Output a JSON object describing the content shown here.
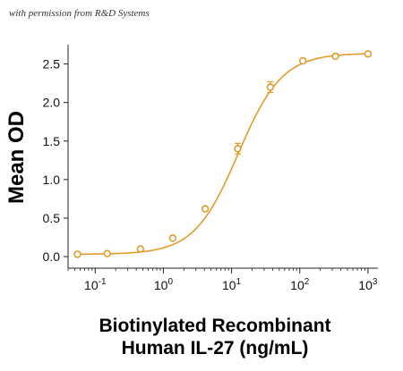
{
  "credit": "with permission from R&D Systems",
  "colors": {
    "series": "#e39b2b",
    "axis": "#222222"
  },
  "chart_data": {
    "type": "scatter",
    "title": "",
    "ylabel": "Mean OD",
    "xlabel_line1": "Biotinylated Recombinant",
    "xlabel_line2": "Human IL-27 (ng/mL)",
    "x_scale": "log",
    "xlim": [
      0.04,
      1400
    ],
    "ylim": [
      -0.15,
      2.75
    ],
    "x_ticks": [
      0.1,
      1,
      10,
      100,
      1000
    ],
    "x_tick_labels": [
      {
        "base": "10",
        "exp": "-1"
      },
      {
        "base": "10",
        "exp": "0"
      },
      {
        "base": "10",
        "exp": "1"
      },
      {
        "base": "10",
        "exp": "2"
      },
      {
        "base": "10",
        "exp": "3"
      }
    ],
    "y_ticks": [
      0.0,
      0.5,
      1.0,
      1.5,
      2.0,
      2.5
    ],
    "y_tick_labels": [
      "0.0",
      "0.5",
      "1.0",
      "1.5",
      "2.0",
      "2.5"
    ],
    "grid": false,
    "legend": "none",
    "series": [
      {
        "x": [
          0.055,
          0.15,
          0.46,
          1.37,
          4.1,
          12.3,
          37,
          111,
          333,
          1000
        ],
        "y": [
          0.03,
          0.04,
          0.1,
          0.24,
          0.62,
          1.4,
          2.2,
          2.54,
          2.6,
          2.63
        ],
        "err": [
          0.02,
          0.02,
          0.03,
          0.03,
          0.03,
          0.07,
          0.07,
          0.03,
          0.03,
          0.02
        ]
      }
    ],
    "fit_curve": {
      "model": "4PL",
      "bottom": 0.03,
      "top": 2.64,
      "ec50": 12.5,
      "hill": 1.35
    }
  }
}
